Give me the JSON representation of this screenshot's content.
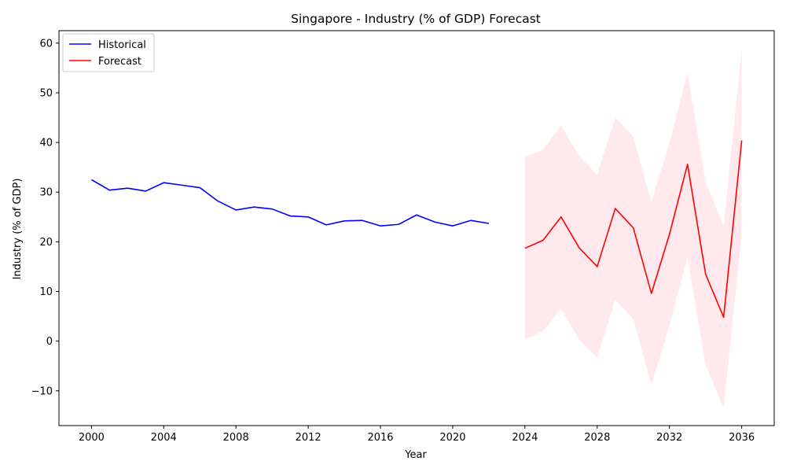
{
  "chart_data": {
    "type": "line",
    "title": "Singapore - Industry (% of GDP) Forecast",
    "xlabel": "Year",
    "ylabel": "Industry (% of GDP)",
    "xlim": [
      1998.2,
      2037.8
    ],
    "ylim": [
      -17.0,
      62.5
    ],
    "xticks": [
      2000,
      2004,
      2008,
      2012,
      2016,
      2020,
      2024,
      2028,
      2032,
      2036
    ],
    "yticks": [
      -10,
      0,
      10,
      20,
      30,
      40,
      50,
      60
    ],
    "ytick_labels": [
      "−10",
      "0",
      "10",
      "20",
      "30",
      "40",
      "50",
      "60"
    ],
    "grid": false,
    "legend_position": "upper left",
    "series": [
      {
        "name": "Historical",
        "color": "#0000ff",
        "x": [
          2000,
          2001,
          2002,
          2003,
          2004,
          2005,
          2006,
          2007,
          2008,
          2009,
          2010,
          2011,
          2012,
          2013,
          2014,
          2015,
          2016,
          2017,
          2018,
          2019,
          2020,
          2021,
          2022
        ],
        "y": [
          32.5,
          30.4,
          30.8,
          30.2,
          31.9,
          31.4,
          30.9,
          28.2,
          26.4,
          27.0,
          26.6,
          25.2,
          25.0,
          23.4,
          24.2,
          24.3,
          23.2,
          23.5,
          25.4,
          24.0,
          23.2,
          24.3,
          23.7
        ]
      },
      {
        "name": "Forecast",
        "color": "#ff0000",
        "x": [
          2024,
          2025,
          2026,
          2027,
          2028,
          2029,
          2030,
          2031,
          2032,
          2033,
          2034,
          2035,
          2036
        ],
        "y": [
          18.7,
          20.3,
          25.0,
          18.8,
          15.0,
          26.7,
          22.8,
          9.6,
          21.5,
          35.6,
          13.5,
          4.8,
          40.4
        ],
        "lower": [
          0.3,
          2.0,
          6.5,
          0.3,
          -3.3,
          8.3,
          4.4,
          -8.8,
          3.0,
          17.0,
          -4.8,
          -13.5,
          21.5
        ],
        "upper": [
          37.0,
          38.6,
          43.4,
          37.3,
          33.5,
          45.0,
          41.2,
          28.0,
          40.0,
          54.0,
          32.0,
          23.3,
          58.8
        ]
      }
    ],
    "band_color": "#ffc0cb"
  }
}
